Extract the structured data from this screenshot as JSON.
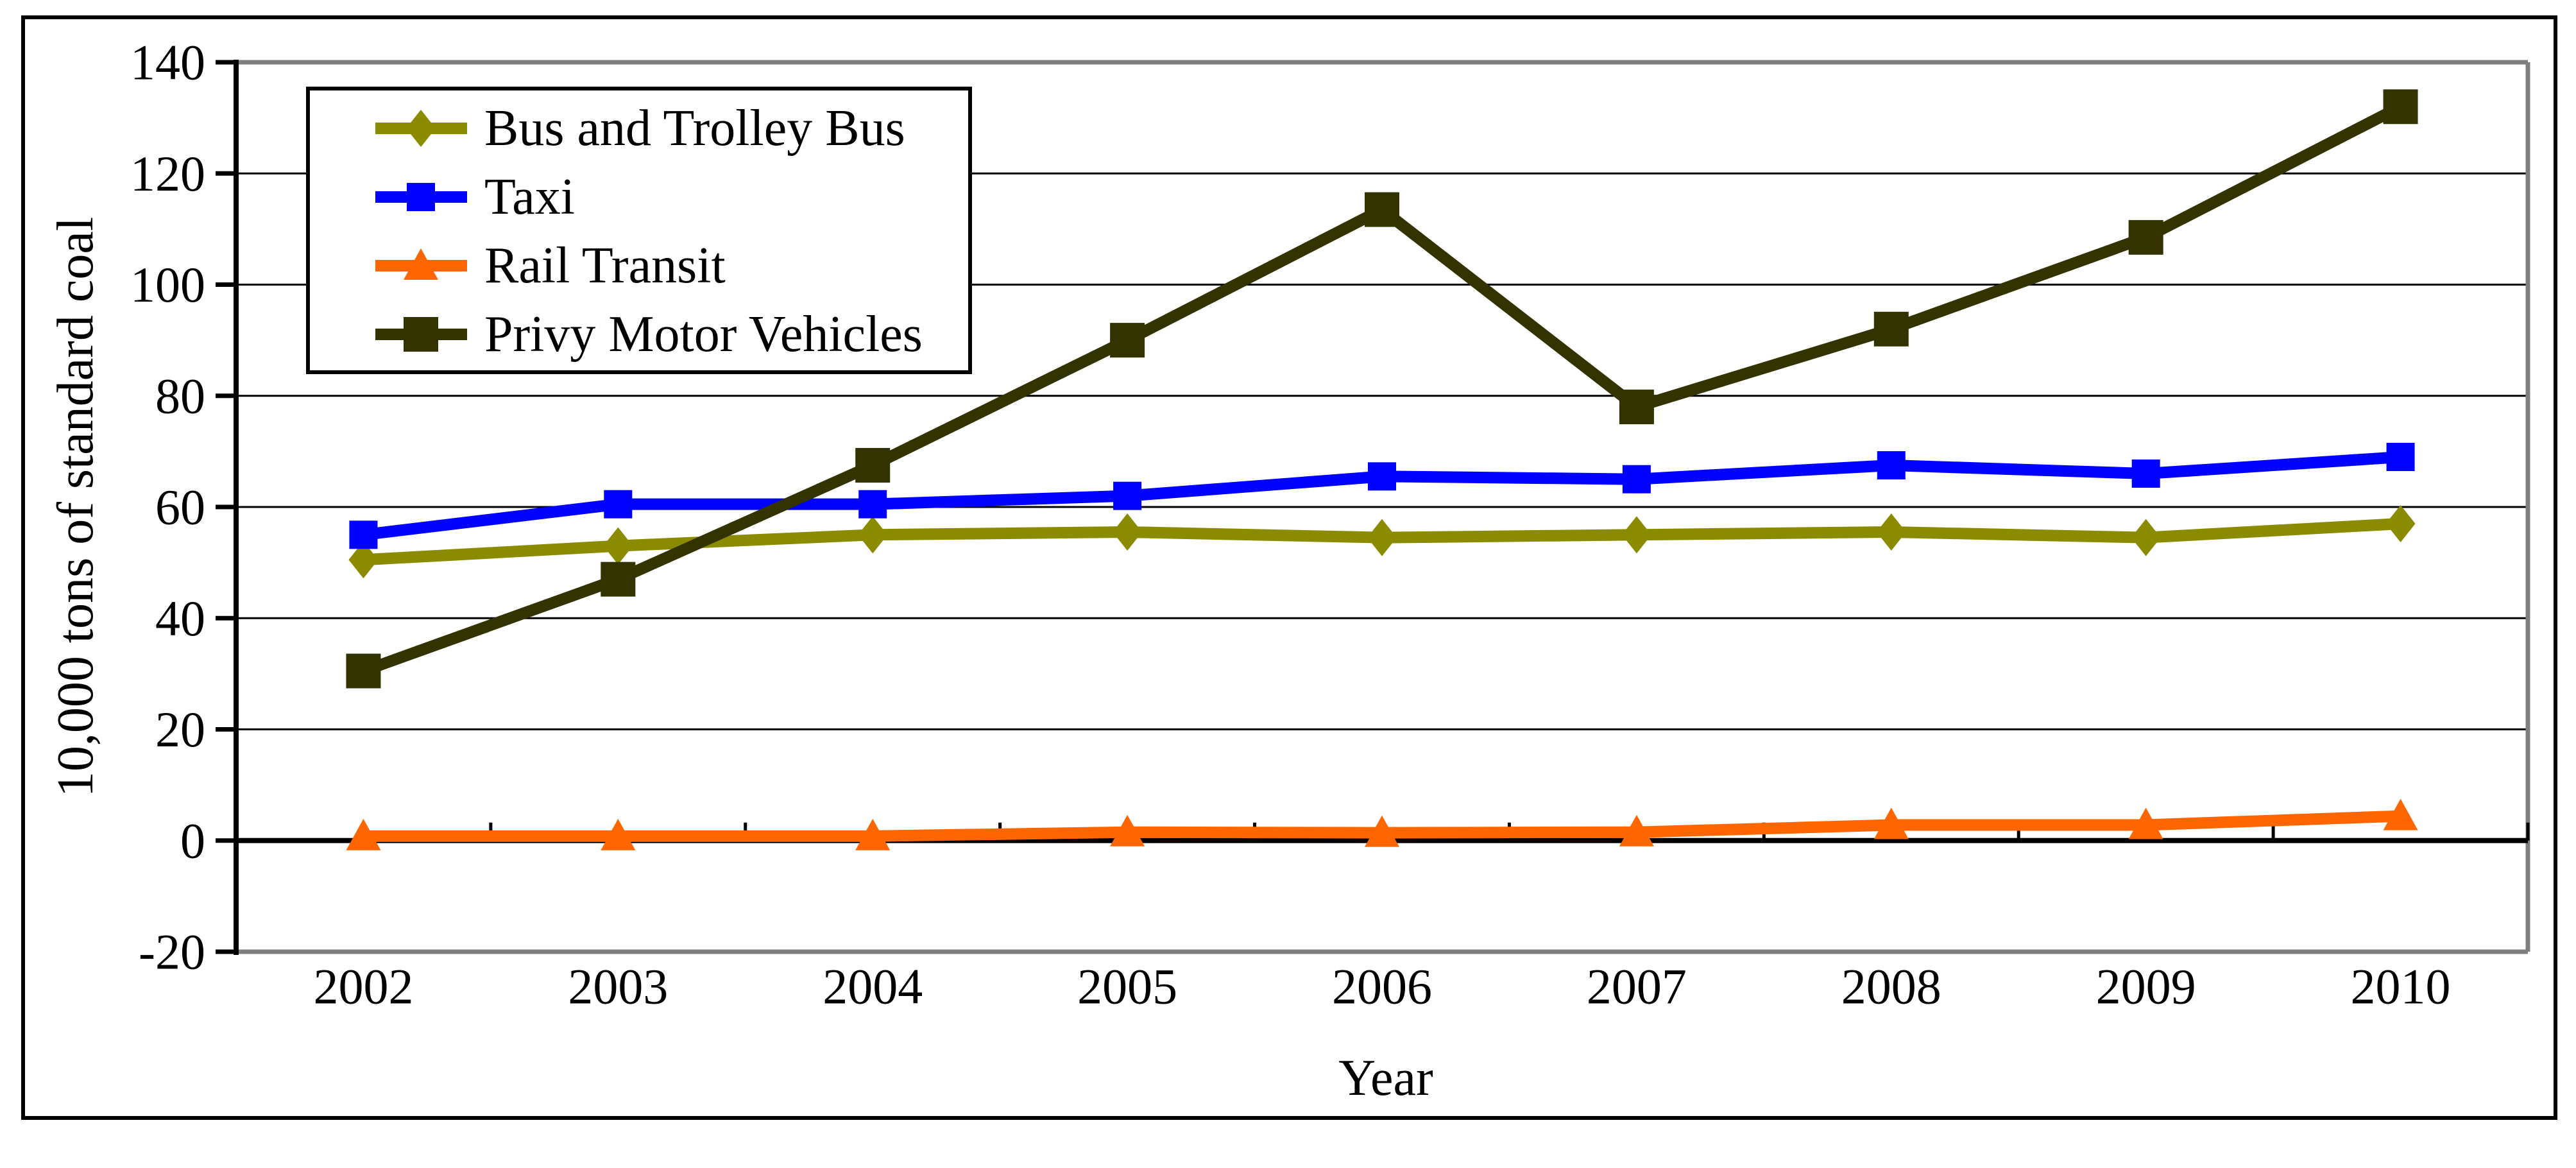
{
  "figure": {
    "background": "#FFFFFF",
    "outer_border_color": "#000000",
    "plot_border_color": "#7F7F7F",
    "gridline_color": "#000000",
    "axis_color": "#000000"
  },
  "chart_data": {
    "type": "line",
    "title": "",
    "xlabel": "Year",
    "ylabel": "10,000 tons of standard coal",
    "x": [
      2002,
      2003,
      2004,
      2005,
      2006,
      2007,
      2008,
      2009,
      2010
    ],
    "ylim": [
      -20,
      140
    ],
    "ytick_step": 20,
    "yticks": [
      140,
      120,
      100,
      80,
      60,
      40,
      20,
      0,
      -20
    ],
    "grid": "horizontal",
    "legend_position": "top-left",
    "series": [
      {
        "name": "Bus and Trolley Bus",
        "color": "#8B8B00",
        "marker": "diamond",
        "values": [
          50.5,
          53,
          55,
          55.5,
          54.5,
          55,
          55.5,
          54.5,
          57
        ]
      },
      {
        "name": "Taxi",
        "color": "#0000FF",
        "marker": "square",
        "values": [
          55,
          60.5,
          60.5,
          62,
          65.5,
          65,
          67.5,
          66,
          69
        ]
      },
      {
        "name": "Rail Transit",
        "color": "#FF6600",
        "marker": "triangle",
        "values": [
          0.8,
          0.8,
          0.8,
          1.5,
          1.4,
          1.5,
          2.8,
          2.8,
          4.4
        ]
      },
      {
        "name": "Privy Motor Vehicles",
        "color": "#333300",
        "marker": "square-large",
        "values": [
          30.5,
          47,
          67.5,
          90,
          113.5,
          78,
          92,
          108.5,
          132
        ]
      }
    ]
  }
}
